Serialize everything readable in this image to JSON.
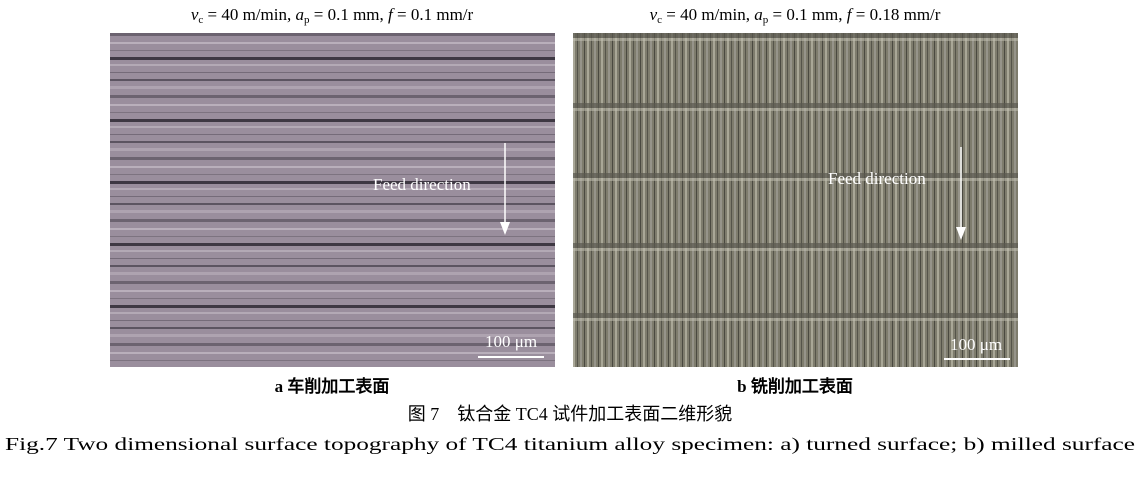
{
  "panels": [
    {
      "condition": [
        "v",
        "c",
        " = 40 m/min, ",
        "a",
        "p",
        " = 0.1 mm, ",
        "f",
        " = 0.1 mm/r"
      ],
      "feed_label": "Feed direction",
      "scale_bar": "100 μm",
      "caption_letter": "a",
      "caption": "车削加工表面"
    },
    {
      "condition": [
        "v",
        "c",
        " = 40 m/min, ",
        "a",
        "p",
        " = 0.1 mm, ",
        "f",
        " = 0.18 mm/r"
      ],
      "feed_label": "Feed direction",
      "scale_bar": "100 μm",
      "caption_letter": "b",
      "caption": "铣削加工表面"
    }
  ],
  "figure_caption_cn": "图 7　钛合金 TC4 试件加工表面二维形貌",
  "figure_caption_en": "Fig.7 Two dimensional surface topography of TC4 titanium alloy specimen: a) turned surface; b) milled surface"
}
